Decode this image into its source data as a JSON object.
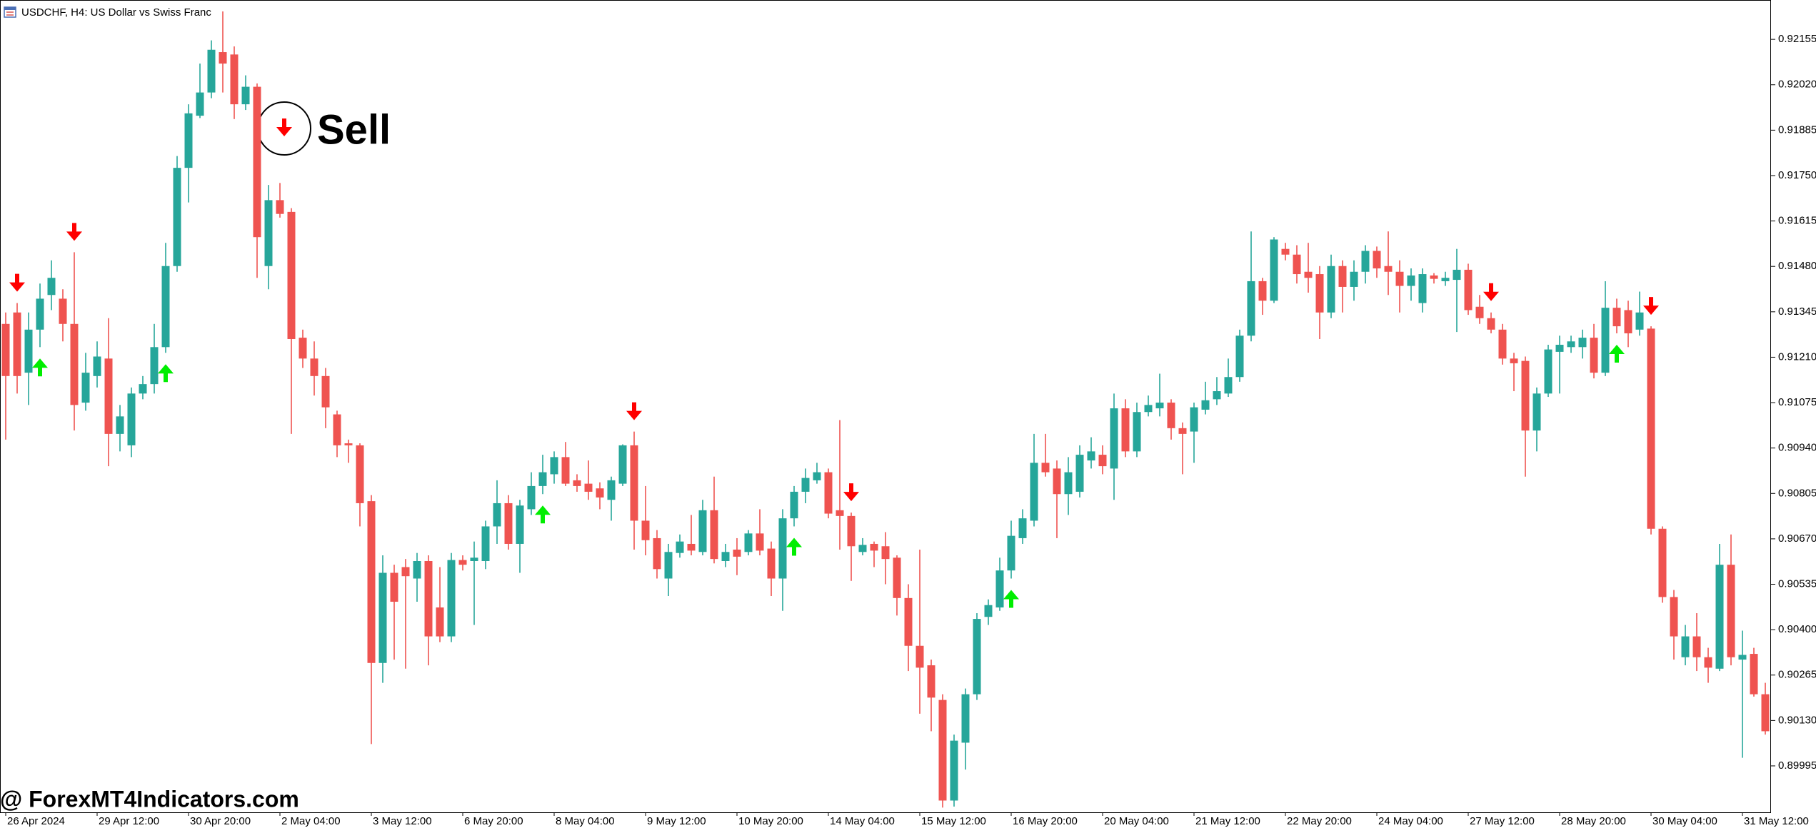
{
  "chart_data": {
    "type": "candlestick",
    "title": "USDCHF, H4:  US Dollar vs Swiss Franc",
    "annotation": "Sell",
    "watermark": "@ ForexMT4Indicators.com",
    "up_color": "#26a69a",
    "down_color": "#ef5350",
    "sell_color": "#ff0000",
    "buy_color": "#00ee00",
    "categories": [
      "26 Apr 2024",
      null,
      null,
      null,
      null,
      null,
      null,
      null,
      "29 Apr 12:00",
      null,
      null,
      null,
      null,
      null,
      null,
      null,
      "30 Apr 20:00",
      null,
      null,
      null,
      null,
      null,
      null,
      null,
      "2 May 04:00",
      null,
      null,
      null,
      null,
      null,
      null,
      null,
      "3 May 12:00",
      null,
      null,
      null,
      null,
      null,
      null,
      null,
      "6 May 20:00",
      null,
      null,
      null,
      null,
      null,
      null,
      null,
      "8 May 04:00",
      null,
      null,
      null,
      null,
      null,
      null,
      null,
      "9 May 12:00",
      null,
      null,
      null,
      null,
      null,
      null,
      null,
      "10 May 20:00",
      null,
      null,
      null,
      null,
      null,
      null,
      null,
      "14 May 04:00",
      null,
      null,
      null,
      null,
      null,
      null,
      null,
      "15 May 12:00",
      null,
      null,
      null,
      null,
      null,
      null,
      null,
      "16 May 20:00",
      null,
      null,
      null,
      null,
      null,
      null,
      null,
      "20 May 04:00",
      null,
      null,
      null,
      null,
      null,
      null,
      null,
      "21 May 12:00",
      null,
      null,
      null,
      null,
      null,
      null,
      null,
      "22 May 20:00",
      null,
      null,
      null,
      null,
      null,
      null,
      null,
      "24 May 04:00",
      null,
      null,
      null,
      null,
      null,
      null,
      null,
      "27 May 12:00",
      null,
      null,
      null,
      null,
      null,
      null,
      null,
      "28 May 20:00",
      null,
      null,
      null,
      null,
      null,
      null,
      null,
      "30 May 04:00",
      null,
      null,
      null,
      null,
      null,
      null,
      null,
      "31 May 12:00",
      null,
      null
    ],
    "open": [
      0.91309,
      0.91343,
      0.91164,
      0.91292,
      0.91395,
      0.91384,
      0.91309,
      0.91075,
      0.91154,
      0.91206,
      0.90982,
      0.90948,
      0.91102,
      0.9113,
      0.9124,
      0.91481,
      0.91773,
      0.91928,
      0.91997,
      0.92117,
      0.9211,
      0.91962,
      0.92014,
      0.91481,
      0.91677,
      0.91642,
      0.91268,
      0.91206,
      0.91154,
      0.9104,
      0.90954,
      0.90948,
      0.90782,
      0.90301,
      0.90569,
      0.90586,
      0.90552,
      0.90604,
      0.90466,
      0.9038,
      0.90607,
      0.90604,
      0.90604,
      0.90707,
      0.90776,
      0.90655,
      0.90758,
      0.90827,
      0.90862,
      0.90913,
      0.90844,
      0.90834,
      0.9082,
      0.90786,
      0.90834,
      0.90948,
      0.90724,
      0.90672,
      0.90552,
      0.90628,
      0.90655,
      0.90631,
      0.90755,
      0.90604,
      0.90638,
      0.90631,
      0.90686,
      0.90641,
      0.90552,
      0.90731,
      0.9081,
      0.90844,
      0.90868,
      0.90755,
      0.90738,
      0.90631,
      0.90655,
      0.90648,
      0.90614,
      0.90494,
      0.90352,
      0.90294,
      0.90191,
      0.89892,
      0.90064,
      0.90208,
      0.90438,
      0.90466,
      0.90576,
      0.90672,
      0.90724,
      0.90896,
      0.90879,
      0.90803,
      0.9081,
      0.90903,
      0.9092,
      0.90879,
      0.91058,
      0.9093,
      0.91047,
      0.91058,
      0.91075,
      0.90999,
      0.90989,
      0.91054,
      0.91085,
      0.91102,
      0.91151,
      0.91274,
      0.91436,
      0.91378,
      0.91532,
      0.91515,
      0.91464,
      0.91457,
      0.91343,
      0.91481,
      0.91419,
      0.91464,
      0.91526,
      0.91481,
      0.91464,
      0.91422,
      0.91371,
      0.91453,
      0.91436,
      0.9144,
      0.9147,
      0.9136,
      0.91326,
      0.91292,
      0.91206,
      0.91199,
      0.90992,
      0.91102,
      0.91226,
      0.9124,
      0.9124,
      0.91268,
      0.91164,
      0.91357,
      0.9135,
      0.91292,
      0.91295,
      0.907,
      0.90497,
      0.90318,
      0.9038,
      0.90318,
      0.90284,
      0.90593,
      0.90311,
      0.90328,
      0.90208
    ],
    "high": [
      0.91343,
      0.91371,
      0.91343,
      0.91429,
      0.91498,
      0.91412,
      0.91522,
      0.91223,
      0.91257,
      0.91326,
      0.91068,
      0.9112,
      0.91154,
      0.91309,
      0.9155,
      0.91808,
      0.91962,
      0.92083,
      0.92152,
      0.92238,
      0.92134,
      0.92048,
      0.92024,
      0.91722,
      0.91728,
      0.91653,
      0.91292,
      0.91257,
      0.91178,
      0.91051,
      0.90965,
      0.90954,
      0.908,
      0.90621,
      0.90593,
      0.9061,
      0.90628,
      0.90621,
      0.90586,
      0.90628,
      0.90621,
      0.90662,
      0.90724,
      0.90844,
      0.908,
      0.90786,
      0.90868,
      0.9092,
      0.9093,
      0.90958,
      0.90862,
      0.90903,
      0.90838,
      0.90855,
      0.90951,
      0.90989,
      0.90827,
      0.90696,
      0.90655,
      0.90683,
      0.90741,
      0.90786,
      0.90855,
      0.90655,
      0.90672,
      0.90696,
      0.90758,
      0.90662,
      0.90758,
      0.90827,
      0.90879,
      0.90896,
      0.90879,
      0.91023,
      0.90748,
      0.90672,
      0.90662,
      0.9069,
      0.90621,
      0.90535,
      0.90638,
      0.90311,
      0.90208,
      0.90088,
      0.90225,
      0.90449,
      0.9049,
      0.90614,
      0.90724,
      0.90758,
      0.90982,
      0.90982,
      0.90903,
      0.90913,
      0.90948,
      0.90972,
      0.90948,
      0.91102,
      0.91085,
      0.91075,
      0.91096,
      0.91161,
      0.91085,
      0.91016,
      0.91075,
      0.91137,
      0.91151,
      0.91206,
      0.91292,
      0.91584,
      0.91446,
      0.91567,
      0.9155,
      0.91543,
      0.9155,
      0.91481,
      0.91515,
      0.91498,
      0.91498,
      0.91543,
      0.91539,
      0.91584,
      0.91498,
      0.91474,
      0.91474,
      0.9146,
      0.91464,
      0.91532,
      0.91488,
      0.91395,
      0.91343,
      0.91309,
      0.91223,
      0.91212,
      0.9112,
      0.91247,
      0.91274,
      0.91274,
      0.91292,
      0.91309,
      0.91436,
      0.91384,
      0.91378,
      0.91405,
      0.91302,
      0.90707,
      0.90518,
      0.90414,
      0.90449,
      0.90346,
      0.90655,
      0.90683,
      0.90397,
      0.90346,
      0.90242
    ],
    "low": [
      0.90965,
      0.91102,
      0.91068,
      0.9124,
      0.9135,
      0.91257,
      0.90992,
      0.91051,
      0.9112,
      0.90886,
      0.9093,
      0.90913,
      0.91085,
      0.91102,
      0.91223,
      0.91464,
      0.9167,
      0.91921,
      0.9198,
      0.91997,
      0.91918,
      0.91945,
      0.91446,
      0.91412,
      0.91625,
      0.90982,
      0.91178,
      0.91096,
      0.90999,
      0.90913,
      0.90896,
      0.90707,
      0.9006,
      0.90242,
      0.90311,
      0.90284,
      0.90483,
      0.90294,
      0.90363,
      0.90363,
      0.90576,
      0.90414,
      0.9058,
      0.90655,
      0.90638,
      0.90569,
      0.90741,
      0.90803,
      0.90834,
      0.90827,
      0.9081,
      0.90786,
      0.90758,
      0.90724,
      0.90827,
      0.90638,
      0.90621,
      0.90552,
      0.905,
      0.90614,
      0.90621,
      0.90621,
      0.90597,
      0.90586,
      0.90562,
      0.90621,
      0.90621,
      0.905,
      0.90456,
      0.90707,
      0.90776,
      0.90834,
      0.90731,
      0.90638,
      0.90545,
      0.90621,
      0.90586,
      0.90535,
      0.90442,
      0.90277,
      0.9015,
      0.90098,
      0.89871,
      0.89874,
      0.89984,
      0.90191,
      0.90414,
      0.90456,
      0.90552,
      0.90655,
      0.90707,
      0.90855,
      0.90672,
      0.90741,
      0.90793,
      0.90879,
      0.90862,
      0.90786,
      0.90913,
      0.90913,
      0.91034,
      0.91034,
      0.90965,
      0.90862,
      0.90896,
      0.9104,
      0.91068,
      0.91092,
      0.91137,
      0.91257,
      0.91336,
      0.91371,
      0.91498,
      0.91429,
      0.91402,
      0.91264,
      0.91326,
      0.91343,
      0.91378,
      0.91429,
      0.91446,
      0.91395,
      0.91343,
      0.91378,
      0.91343,
      0.91429,
      0.91422,
      0.91285,
      0.91336,
      0.91309,
      0.91281,
      0.91188,
      0.91109,
      0.90855,
      0.9093,
      0.91092,
      0.91102,
      0.91223,
      0.91206,
      0.91147,
      0.91154,
      0.91281,
      0.9124,
      0.91274,
      0.90683,
      0.9048,
      0.90311,
      0.90294,
      0.90277,
      0.90242,
      0.90277,
      0.90294,
      0.90019,
      0.90201,
      0.90088
    ],
    "close": [
      0.91154,
      0.91154,
      0.91292,
      0.91384,
      0.91446,
      0.91309,
      0.91068,
      0.91164,
      0.91212,
      0.90982,
      0.91034,
      0.91102,
      0.9113,
      0.9124,
      0.91481,
      0.91773,
      0.91935,
      0.91997,
      0.92124,
      0.92083,
      0.91962,
      0.92014,
      0.91567,
      0.91677,
      0.91636,
      0.91264,
      0.91206,
      0.91154,
      0.91061,
      0.90948,
      0.90948,
      0.90776,
      0.90301,
      0.90569,
      0.90483,
      0.90559,
      0.90604,
      0.9038,
      0.9038,
      0.90607,
      0.90593,
      0.90614,
      0.90707,
      0.90776,
      0.90655,
      0.90769,
      0.90827,
      0.90868,
      0.90913,
      0.90834,
      0.90827,
      0.9081,
      0.90793,
      0.90844,
      0.90948,
      0.90724,
      0.90666,
      0.9058,
      0.90631,
      0.90662,
      0.90635,
      0.90755,
      0.9061,
      0.90631,
      0.90617,
      0.90686,
      0.90635,
      0.90552,
      0.90731,
      0.9081,
      0.90851,
      0.90868,
      0.90745,
      0.90738,
      0.90648,
      0.90652,
      0.90635,
      0.9061,
      0.90494,
      0.90352,
      0.90287,
      0.90198,
      0.89892,
      0.9007,
      0.90208,
      0.90432,
      0.90473,
      0.90576,
      0.90679,
      0.90731,
      0.90896,
      0.90868,
      0.90803,
      0.90868,
      0.9092,
      0.9093,
      0.90886,
      0.91058,
      0.9093,
      0.91047,
      0.91068,
      0.91075,
      0.90999,
      0.90982,
      0.91061,
      0.91082,
      0.91109,
      0.91151,
      0.91274,
      0.91436,
      0.91378,
      0.9156,
      0.91515,
      0.91457,
      0.91446,
      0.91343,
      0.91481,
      0.91419,
      0.91464,
      0.91526,
      0.91474,
      0.91464,
      0.91422,
      0.91453,
      0.91457,
      0.91443,
      0.91446,
      0.9147,
      0.9135,
      0.91326,
      0.91292,
      0.91206,
      0.91192,
      0.90992,
      0.91102,
      0.91233,
      0.91247,
      0.91257,
      0.91268,
      0.91164,
      0.91357,
      0.91302,
      0.91281,
      0.91343,
      0.907,
      0.90497,
      0.9038,
      0.9038,
      0.90318,
      0.90287,
      0.90593,
      0.90318,
      0.90325,
      0.90208,
      0.90098
    ],
    "sell_signals": [
      1,
      6,
      55,
      74,
      130,
      144
    ],
    "buy_signals": [
      3,
      14,
      47,
      69,
      88,
      141
    ],
    "ylim": [
      0.89857,
      0.92272
    ],
    "yticks": [
      0.92155,
      {
        "value": 0.9202,
        "label": "0.92020"
      },
      0.91885,
      {
        "value": 0.9175,
        "label": "0.91750"
      },
      0.91615,
      {
        "value": 0.9148,
        "label": "0.91480"
      },
      0.91345,
      {
        "value": 0.9121,
        "label": "0.91210"
      },
      0.91075,
      {
        "value": 0.9094,
        "label": "0.90940"
      },
      0.90805,
      {
        "value": 0.9067,
        "label": "0.90670"
      },
      0.90535,
      {
        "value": 0.904,
        "label": "0.90400"
      },
      0.90265,
      {
        "value": 0.9013,
        "label": "0.90130"
      },
      0.89995
    ],
    "grid": false
  }
}
